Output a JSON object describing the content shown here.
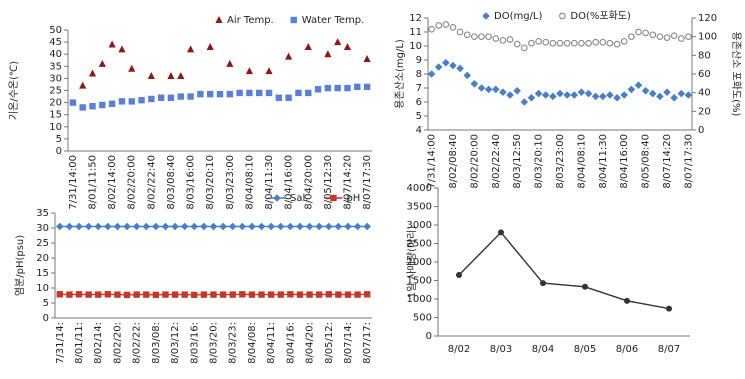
{
  "chart_data": [
    {
      "type": "scatter",
      "ylabel": "기온/수온(℃)",
      "categories": [
        "7/31/14:00",
        null,
        "8/01/11:50",
        null,
        "8/02/14:00",
        null,
        "8/02/20:00",
        null,
        "8/02/22:40",
        null,
        "8/03/08:40",
        null,
        "8/03/16:00",
        null,
        "8/03/20:10",
        null,
        "8/03/23:00",
        null,
        "8/04/08:10",
        null,
        "8/04/11:30",
        null,
        "8/04/16:00",
        null,
        "8/04/20:00",
        null,
        "8/05/12:30",
        null,
        "8/07/14:20",
        null,
        "8/07/17:30"
      ],
      "series": [
        {
          "name": "Air Temp.",
          "color": "#8b1a1a",
          "marker": "triangle",
          "line": false,
          "values": [
            null,
            27,
            32,
            36,
            44,
            42,
            34,
            null,
            31,
            null,
            31,
            31,
            42,
            null,
            43,
            null,
            36,
            null,
            33,
            null,
            33,
            null,
            39,
            null,
            43,
            null,
            40,
            45,
            43,
            null,
            38
          ]
        },
        {
          "name": "Water Temp.",
          "color": "#5b7fd4",
          "marker": "square",
          "line": false,
          "values": [
            20,
            18,
            18.5,
            19,
            19.5,
            20.5,
            20.5,
            21,
            21.5,
            22,
            22,
            22.5,
            22.5,
            23.5,
            23.5,
            23.5,
            23.5,
            24,
            24,
            24,
            24,
            22,
            22,
            24,
            24,
            25.5,
            26,
            26,
            26,
            26.5,
            26.5
          ]
        }
      ],
      "ylim": [
        0,
        50
      ],
      "yticks": [
        0,
        5,
        10,
        15,
        20,
        25,
        30,
        35,
        40,
        45,
        50
      ]
    },
    {
      "type": "scatter",
      "ylabel": "용존산소(mg/L)",
      "y2label": "용존산소 포화도(%)",
      "categories": [
        "7/31/14:00",
        null,
        null,
        "8/02/08:40",
        null,
        null,
        "8/02/20:00",
        null,
        null,
        "8/02/22:40",
        null,
        null,
        "8/03/12:50",
        null,
        null,
        "8/03/20:10",
        null,
        null,
        "8/03/23:00",
        null,
        null,
        "8/04/08:10",
        null,
        null,
        "8/04/11:30",
        null,
        null,
        "8/04/16:00",
        null,
        null,
        "8/05/08:40",
        null,
        null,
        "8/07/14:20",
        null,
        null,
        "8/07/17:30"
      ],
      "series": [
        {
          "name": "DO(mg/L)",
          "color": "#4a7fc1",
          "marker": "diamond",
          "line": false,
          "values": [
            8,
            8.5,
            8.8,
            8.6,
            8.4,
            7.9,
            7.3,
            7.0,
            6.9,
            6.9,
            6.7,
            6.5,
            6.8,
            6.0,
            6.3,
            6.6,
            6.5,
            6.4,
            6.6,
            6.5,
            6.5,
            6.7,
            6.6,
            6.4,
            6.4,
            6.5,
            6.3,
            6.5,
            6.9,
            7.2,
            6.8,
            6.6,
            6.4,
            6.7,
            6.3,
            6.6,
            6.5
          ]
        },
        {
          "name": "DO(%포화도)",
          "color": "#888888",
          "marker": "circle-open",
          "line": false,
          "axis": "y2",
          "values": [
            108,
            112,
            113,
            110,
            105,
            102,
            100,
            100,
            100,
            98,
            96,
            97,
            92,
            88,
            93,
            95,
            94,
            93,
            93,
            93,
            93,
            93,
            93,
            94,
            94,
            93,
            92,
            95,
            100,
            105,
            104,
            102,
            100,
            99,
            101,
            98,
            100
          ]
        }
      ],
      "ylim": [
        4,
        12
      ],
      "yticks": [
        4,
        5,
        6,
        7,
        8,
        9,
        10,
        11,
        12
      ],
      "y2lim": [
        0,
        120
      ],
      "y2ticks": [
        0,
        20,
        40,
        60,
        80,
        100,
        120
      ]
    },
    {
      "type": "line",
      "ylabel": "염분/pH(psu)",
      "categories": [
        "7/31/14:",
        null,
        "8/01/11:",
        null,
        "8/02/14:",
        null,
        "8/02/20:",
        null,
        "8/02/22:",
        null,
        "8/03/08:",
        null,
        "8/03/12:",
        null,
        "8/03/16:",
        null,
        "8/03/20:",
        null,
        "8/03/23:",
        null,
        "8/04/08:",
        null,
        "8/04/11:",
        null,
        "8/04/16:",
        null,
        "8/04/20:",
        null,
        "8/05/12:",
        null,
        "8/07/14:",
        null,
        "8/07/17:"
      ],
      "series": [
        {
          "name": "Sal.",
          "color": "#4a7fc1",
          "marker": "diamond",
          "line": true,
          "values": [
            30.5,
            30.5,
            30.5,
            30.5,
            30.5,
            30.5,
            30.5,
            30.5,
            30.5,
            30.5,
            30.5,
            30.5,
            30.5,
            30.5,
            30.5,
            30.5,
            30.5,
            30.5,
            30.5,
            30.5,
            30.5,
            30.5,
            30.5,
            30.5,
            30.5,
            30.5,
            30.5,
            30.5,
            30.5,
            30.5,
            30.5,
            30.5,
            30.5
          ]
        },
        {
          "name": "pH",
          "color": "#c0392b",
          "marker": "square",
          "line": true,
          "values": [
            7.9,
            7.8,
            7.9,
            7.8,
            7.8,
            7.9,
            7.8,
            7.7,
            7.8,
            7.8,
            7.7,
            7.8,
            7.8,
            7.8,
            7.7,
            7.8,
            7.8,
            7.8,
            7.8,
            7.9,
            7.8,
            7.8,
            7.8,
            7.8,
            7.9,
            7.8,
            7.8,
            7.8,
            7.9,
            7.8,
            7.8,
            7.8,
            7.9
          ]
        }
      ],
      "ylim": [
        0,
        35
      ],
      "yticks": [
        0,
        5,
        10,
        15,
        20,
        25,
        30,
        35
      ]
    },
    {
      "type": "line",
      "ylabel": "1일 사매량(마리)",
      "categories": [
        "8/02",
        "8/03",
        "8/04",
        "8/05",
        "8/06",
        "8/07"
      ],
      "series": [
        {
          "color": "#333333",
          "marker": "circle",
          "line": true,
          "values": [
            1650,
            2800,
            1430,
            1330,
            950,
            740
          ]
        }
      ],
      "ylim": [
        0,
        4000
      ],
      "yticks": [
        0,
        500,
        1000,
        1500,
        2000,
        2500,
        3000,
        3500,
        4000
      ]
    }
  ]
}
